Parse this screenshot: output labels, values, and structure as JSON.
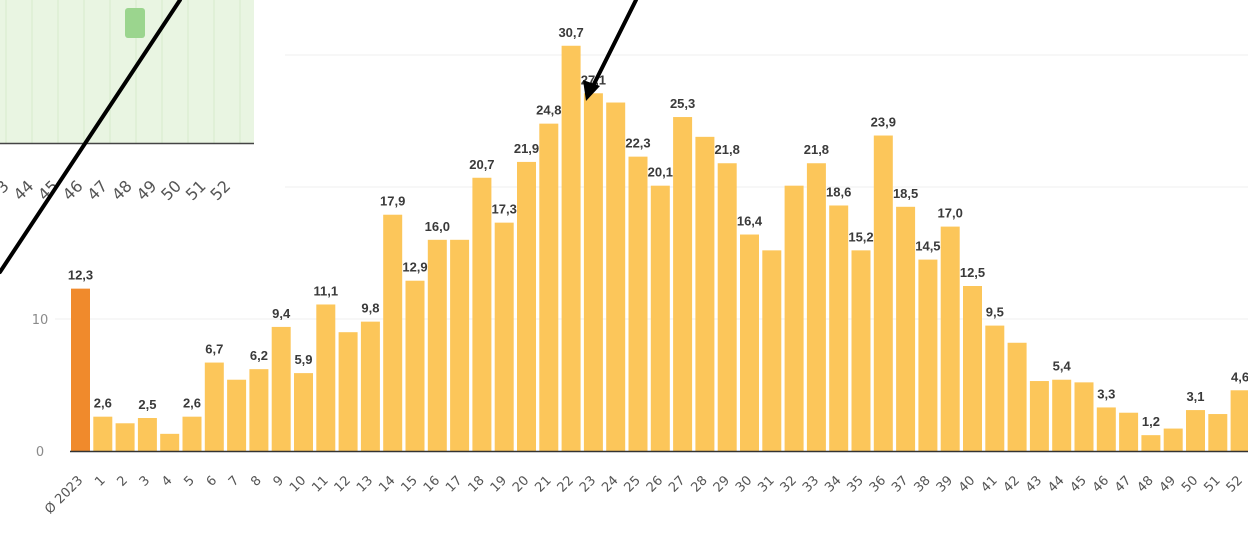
{
  "chart_data": {
    "type": "bar",
    "title": "",
    "xlabel": "",
    "ylabel": "",
    "ylim": [
      0,
      35
    ],
    "y_ticks": [
      0,
      10
    ],
    "grid": true,
    "legend": "none",
    "colors": {
      "average": "#f08a2c",
      "week": "#fcc65a",
      "inset_bar": "#9bd58e",
      "inset_bg": "#e9f5e2",
      "arrow": "#000000"
    },
    "categories": [
      "Ø 2023",
      "1",
      "2",
      "3",
      "4",
      "5",
      "6",
      "7",
      "8",
      "9",
      "10",
      "11",
      "12",
      "13",
      "14",
      "15",
      "16",
      "17",
      "18",
      "19",
      "20",
      "21",
      "22",
      "23",
      "24",
      "25",
      "26",
      "27",
      "28",
      "29",
      "30",
      "31",
      "32",
      "33",
      "34",
      "35",
      "36",
      "37",
      "38",
      "39",
      "40",
      "41",
      "42",
      "43",
      "44",
      "45",
      "46",
      "47",
      "48",
      "49",
      "50",
      "51",
      "52"
    ],
    "values": [
      12.3,
      2.6,
      2.1,
      2.5,
      1.3,
      2.6,
      6.7,
      5.4,
      6.2,
      9.4,
      5.9,
      11.1,
      9.0,
      9.8,
      17.9,
      12.9,
      16.0,
      16.0,
      20.7,
      17.3,
      21.9,
      24.8,
      30.7,
      27.1,
      26.4,
      22.3,
      20.1,
      25.3,
      23.8,
      21.8,
      16.4,
      15.2,
      20.1,
      21.8,
      18.6,
      15.2,
      23.9,
      18.5,
      14.5,
      17.0,
      12.5,
      9.5,
      8.2,
      5.3,
      5.4,
      5.2,
      3.3,
      2.9,
      1.2,
      1.7,
      3.1,
      2.8,
      4.6
    ],
    "labels": [
      "12,3",
      "2,6",
      "",
      "2,5",
      "",
      "2,6",
      "6,7",
      "",
      "6,2",
      "9,4",
      "5,9",
      "11,1",
      "",
      "9,8",
      "17,9",
      "12,9",
      "16,0",
      "",
      "20,7",
      "17,3",
      "21,9",
      "24,8",
      "30,7",
      "27,1",
      "",
      "22,3",
      "20,1",
      "25,3",
      "",
      "21,8",
      "16,4",
      "",
      "",
      "21,8",
      "18,6",
      "15,2",
      "23,9",
      "18,5",
      "14,5",
      "17,0",
      "12,5",
      "9,5",
      "",
      "",
      "5,4",
      "",
      "3,3",
      "",
      "1,2",
      "",
      "3,1",
      "",
      "4,6"
    ],
    "inset": {
      "tick_labels": [
        "3",
        "44",
        "45",
        "46",
        "47",
        "48",
        "49",
        "50",
        "51",
        "52"
      ],
      "bar_category": "48"
    }
  }
}
